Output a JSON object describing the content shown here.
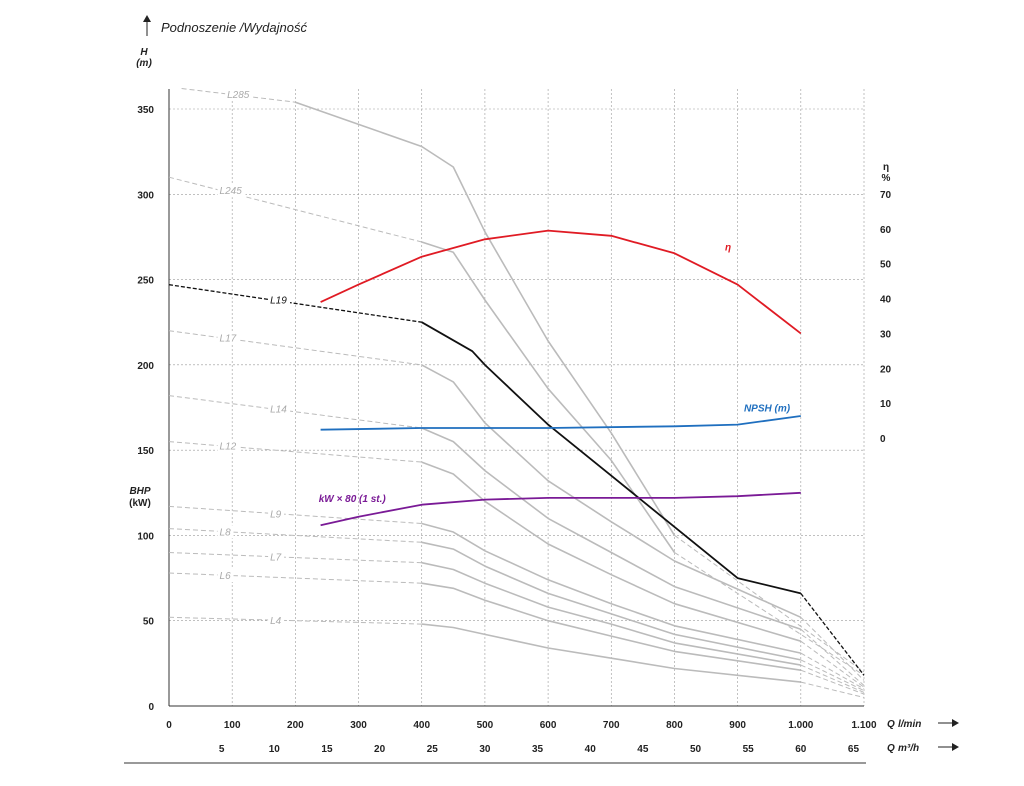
{
  "chart_data": {
    "type": "line",
    "title": "Podnoszenie /Wydajność",
    "y_left": {
      "symbol": "H",
      "unit": "(m)",
      "ticks": [
        "0",
        "50",
        "100",
        "150",
        "200",
        "250",
        "300",
        "350"
      ],
      "range": [
        0,
        350
      ],
      "bhp_symbol": "BHP",
      "bhp_unit": "(kW)"
    },
    "y_right": {
      "symbol": "η",
      "unit": "%",
      "ticks": [
        "0",
        "10",
        "20",
        "30",
        "40",
        "50",
        "60",
        "70"
      ],
      "range": [
        0,
        70
      ]
    },
    "x_primary": {
      "unit_prefix": "Q",
      "unit": "l/min",
      "ticks": [
        "0",
        "100",
        "200",
        "300",
        "400",
        "500",
        "600",
        "700",
        "800",
        "900",
        "1.000",
        "1.100"
      ],
      "range": [
        0,
        1100
      ]
    },
    "x_secondary": {
      "unit_prefix": "Q",
      "unit": "m³/h",
      "ticks": [
        "5",
        "10",
        "15",
        "20",
        "25",
        "30",
        "35",
        "40",
        "45",
        "50",
        "55",
        "60",
        "65"
      ]
    },
    "grid": true,
    "gray_color": "#bbbbbb",
    "models": [
      {
        "name": "L285",
        "label": "L285",
        "dashed_front": [
          [
            20,
            362
          ],
          [
            200,
            354
          ]
        ],
        "solid": [
          [
            200,
            354
          ],
          [
            400,
            328
          ],
          [
            450,
            316
          ],
          [
            500,
            278
          ],
          [
            600,
            214
          ],
          [
            700,
            160
          ],
          [
            800,
            100
          ]
        ],
        "dashed_tail": [
          [
            800,
            100
          ],
          [
            1100,
            20
          ]
        ]
      },
      {
        "name": "L245",
        "label": "L245",
        "dashed_front": [
          [
            0,
            310
          ],
          [
            400,
            272
          ]
        ],
        "solid": [
          [
            400,
            272
          ],
          [
            450,
            266
          ],
          [
            500,
            238
          ],
          [
            600,
            186
          ],
          [
            700,
            144
          ],
          [
            800,
            90
          ]
        ],
        "dashed_tail": [
          [
            800,
            90
          ],
          [
            1100,
            18
          ]
        ]
      },
      {
        "name": "L19",
        "label": "L19",
        "color": "#111111",
        "dashed_front": [
          [
            0,
            247
          ],
          [
            400,
            225
          ]
        ],
        "solid": [
          [
            400,
            225
          ],
          [
            480,
            208
          ],
          [
            500,
            200
          ],
          [
            600,
            165
          ],
          [
            700,
            135
          ],
          [
            800,
            105
          ],
          [
            900,
            75
          ],
          [
            1000,
            66
          ]
        ],
        "dashed_tail": [
          [
            1000,
            66
          ],
          [
            1100,
            18
          ]
        ]
      },
      {
        "name": "L17",
        "label": "L17",
        "dashed_front": [
          [
            0,
            220
          ],
          [
            400,
            200
          ]
        ],
        "solid": [
          [
            400,
            200
          ],
          [
            450,
            190
          ],
          [
            500,
            166
          ],
          [
            600,
            132
          ],
          [
            700,
            108
          ],
          [
            800,
            85
          ],
          [
            1000,
            52
          ]
        ],
        "dashed_tail": [
          [
            1000,
            52
          ],
          [
            1100,
            15
          ]
        ]
      },
      {
        "name": "L14",
        "label": "L14",
        "dashed_front": [
          [
            0,
            182
          ],
          [
            400,
            163
          ]
        ],
        "solid": [
          [
            400,
            163
          ],
          [
            450,
            155
          ],
          [
            500,
            138
          ],
          [
            600,
            110
          ],
          [
            700,
            90
          ],
          [
            800,
            70
          ],
          [
            1000,
            45
          ]
        ],
        "dashed_tail": [
          [
            1000,
            45
          ],
          [
            1100,
            12
          ]
        ]
      },
      {
        "name": "L12",
        "label": "L12",
        "dashed_front": [
          [
            0,
            155
          ],
          [
            400,
            143
          ]
        ],
        "solid": [
          [
            400,
            143
          ],
          [
            450,
            136
          ],
          [
            500,
            120
          ],
          [
            600,
            95
          ],
          [
            700,
            77
          ],
          [
            800,
            60
          ],
          [
            1000,
            38
          ]
        ],
        "dashed_tail": [
          [
            1000,
            38
          ],
          [
            1100,
            11
          ]
        ]
      },
      {
        "name": "L9",
        "label": "L9",
        "dashed_front": [
          [
            0,
            117
          ],
          [
            400,
            107
          ]
        ],
        "solid": [
          [
            400,
            107
          ],
          [
            450,
            102
          ],
          [
            500,
            91
          ],
          [
            600,
            74
          ],
          [
            700,
            60
          ],
          [
            800,
            47
          ],
          [
            1000,
            31
          ]
        ],
        "dashed_tail": [
          [
            1000,
            31
          ],
          [
            1100,
            10
          ]
        ]
      },
      {
        "name": "L8",
        "label": "L8",
        "dashed_front": [
          [
            0,
            104
          ],
          [
            400,
            96
          ]
        ],
        "solid": [
          [
            400,
            96
          ],
          [
            450,
            92
          ],
          [
            500,
            82
          ],
          [
            600,
            66
          ],
          [
            700,
            54
          ],
          [
            800,
            42
          ],
          [
            1000,
            27
          ]
        ],
        "dashed_tail": [
          [
            1000,
            27
          ],
          [
            1100,
            9
          ]
        ]
      },
      {
        "name": "L7",
        "label": "L7",
        "dashed_front": [
          [
            0,
            90
          ],
          [
            400,
            84
          ]
        ],
        "solid": [
          [
            400,
            84
          ],
          [
            450,
            80
          ],
          [
            500,
            72
          ],
          [
            600,
            58
          ],
          [
            700,
            48
          ],
          [
            800,
            37
          ],
          [
            1000,
            24
          ]
        ],
        "dashed_tail": [
          [
            1000,
            24
          ],
          [
            1100,
            8
          ]
        ]
      },
      {
        "name": "L6",
        "label": "L6",
        "dashed_front": [
          [
            0,
            78
          ],
          [
            400,
            72
          ]
        ],
        "solid": [
          [
            400,
            72
          ],
          [
            450,
            69
          ],
          [
            500,
            62
          ],
          [
            600,
            50
          ],
          [
            700,
            41
          ],
          [
            800,
            32
          ],
          [
            1000,
            21
          ]
        ],
        "dashed_tail": [
          [
            1000,
            21
          ],
          [
            1100,
            7
          ]
        ]
      },
      {
        "name": "L4",
        "label": "L4",
        "dashed_front": [
          [
            0,
            52
          ],
          [
            400,
            48
          ]
        ],
        "solid": [
          [
            400,
            48
          ],
          [
            450,
            46
          ],
          [
            500,
            42
          ],
          [
            600,
            34
          ],
          [
            700,
            28
          ],
          [
            800,
            22
          ],
          [
            1000,
            14
          ]
        ],
        "dashed_tail": [
          [
            1000,
            14
          ],
          [
            1100,
            5
          ]
        ]
      }
    ],
    "efficiency": {
      "label": "η",
      "color": "#e01b24",
      "axis": "right",
      "points": [
        [
          240,
          39
        ],
        [
          300,
          44
        ],
        [
          400,
          52
        ],
        [
          500,
          57
        ],
        [
          600,
          59.5
        ],
        [
          700,
          58
        ],
        [
          800,
          53
        ],
        [
          900,
          44
        ],
        [
          1000,
          30
        ]
      ]
    },
    "npsh": {
      "label": "NPSH (m)",
      "color": "#1f6fbf",
      "points": [
        [
          240,
          162
        ],
        [
          400,
          163
        ],
        [
          600,
          163
        ],
        [
          800,
          164
        ],
        [
          900,
          165
        ],
        [
          1000,
          170
        ]
      ]
    },
    "power": {
      "label": "kW × 80 (1 st.)",
      "color": "#7a1a96",
      "points": [
        [
          240,
          106
        ],
        [
          300,
          111
        ],
        [
          400,
          118
        ],
        [
          500,
          121
        ],
        [
          600,
          122
        ],
        [
          700,
          122
        ],
        [
          800,
          122
        ],
        [
          900,
          123
        ],
        [
          1000,
          125
        ]
      ]
    }
  }
}
